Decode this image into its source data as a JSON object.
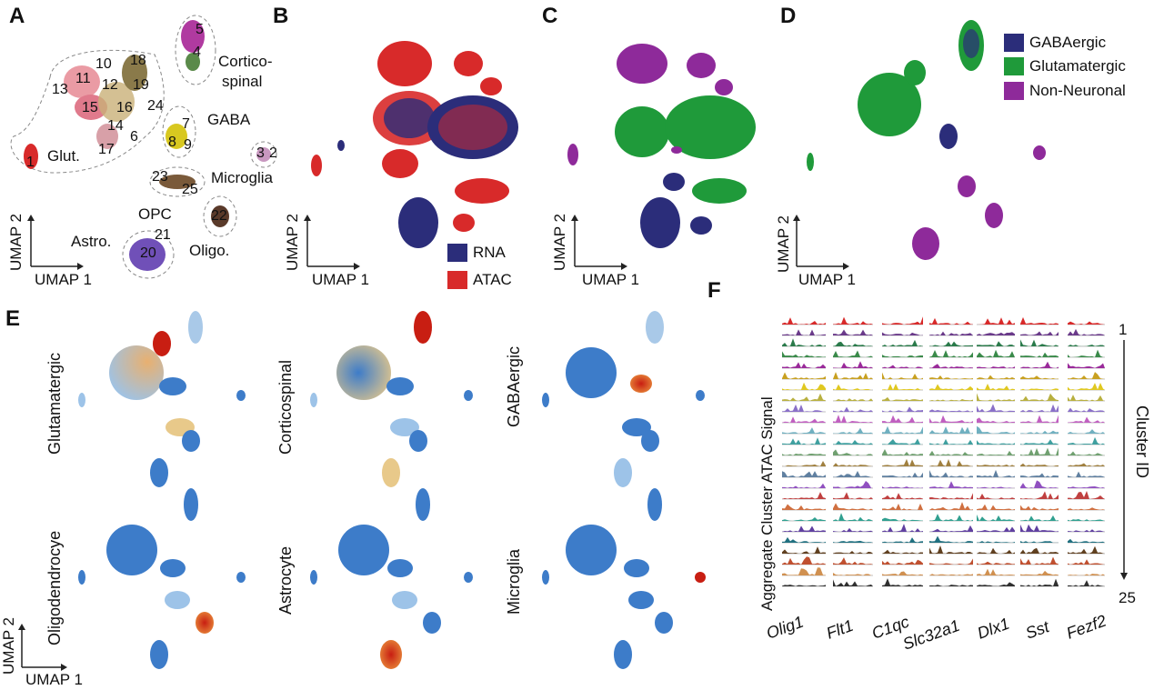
{
  "panels": {
    "A": {
      "letter": "A",
      "clusters": [
        "1",
        "4",
        "5",
        "6",
        "7",
        "8",
        "9",
        "10",
        "11",
        "12",
        "13",
        "14",
        "15",
        "16",
        "17",
        "18",
        "19",
        "20",
        "21",
        "22",
        "23",
        "24",
        "25",
        "3",
        "2"
      ],
      "groups": [
        "Cortico-",
        "spinal",
        "GABA",
        "Glut.",
        "Microglia",
        "OPC",
        "Astro.",
        "Oligo."
      ],
      "axis": {
        "x": "UMAP 1",
        "y": "UMAP 2"
      }
    },
    "B": {
      "letter": "B",
      "axis": {
        "x": "UMAP 1",
        "y": "UMAP 2"
      },
      "legend": [
        {
          "label": "RNA",
          "color": "#2b2d7a"
        },
        {
          "label": "ATAC",
          "color": "#d82a2a"
        }
      ]
    },
    "C": {
      "letter": "C",
      "axis": {
        "x": "UMAP 1",
        "y": "UMAP 2"
      }
    },
    "D": {
      "letter": "D",
      "axis": {
        "x": "UMAP 1",
        "y": "UMAP 2"
      },
      "legend": [
        {
          "label": "GABAergic",
          "color": "#2b2d7a"
        },
        {
          "label": "Glutamatergic",
          "color": "#1f9a3a"
        },
        {
          "label": "Non-Neuronal",
          "color": "#8e2a9a"
        }
      ]
    },
    "E": {
      "letter": "E",
      "maps": [
        "Glutamatergic",
        "Corticospinal",
        "GABAergic",
        "Oligodendrocye",
        "Astrocyte",
        "Microglia"
      ],
      "axis": {
        "x": "UMAP 1",
        "y": "UMAP 2"
      }
    },
    "F": {
      "letter": "F",
      "ylabel": "Aggregate Cluster ATAC Signal",
      "right_label": "Cluster ID",
      "top": "1",
      "bottom": "25",
      "genes": [
        "Olig1",
        "Flt1",
        "C1qc",
        "Slc32a1",
        "Dlx1",
        "Sst",
        "Fezf2"
      ]
    }
  },
  "colors": {
    "rna": "#2b2d7a",
    "atac": "#d82a2a",
    "gaba": "#2b2d7a",
    "glut": "#1f9a3a",
    "nonneuronal": "#8e2a9a",
    "heat_low": "#3d7cc9",
    "heat_mid": "#e8c98a",
    "heat_high": "#c81e12"
  }
}
